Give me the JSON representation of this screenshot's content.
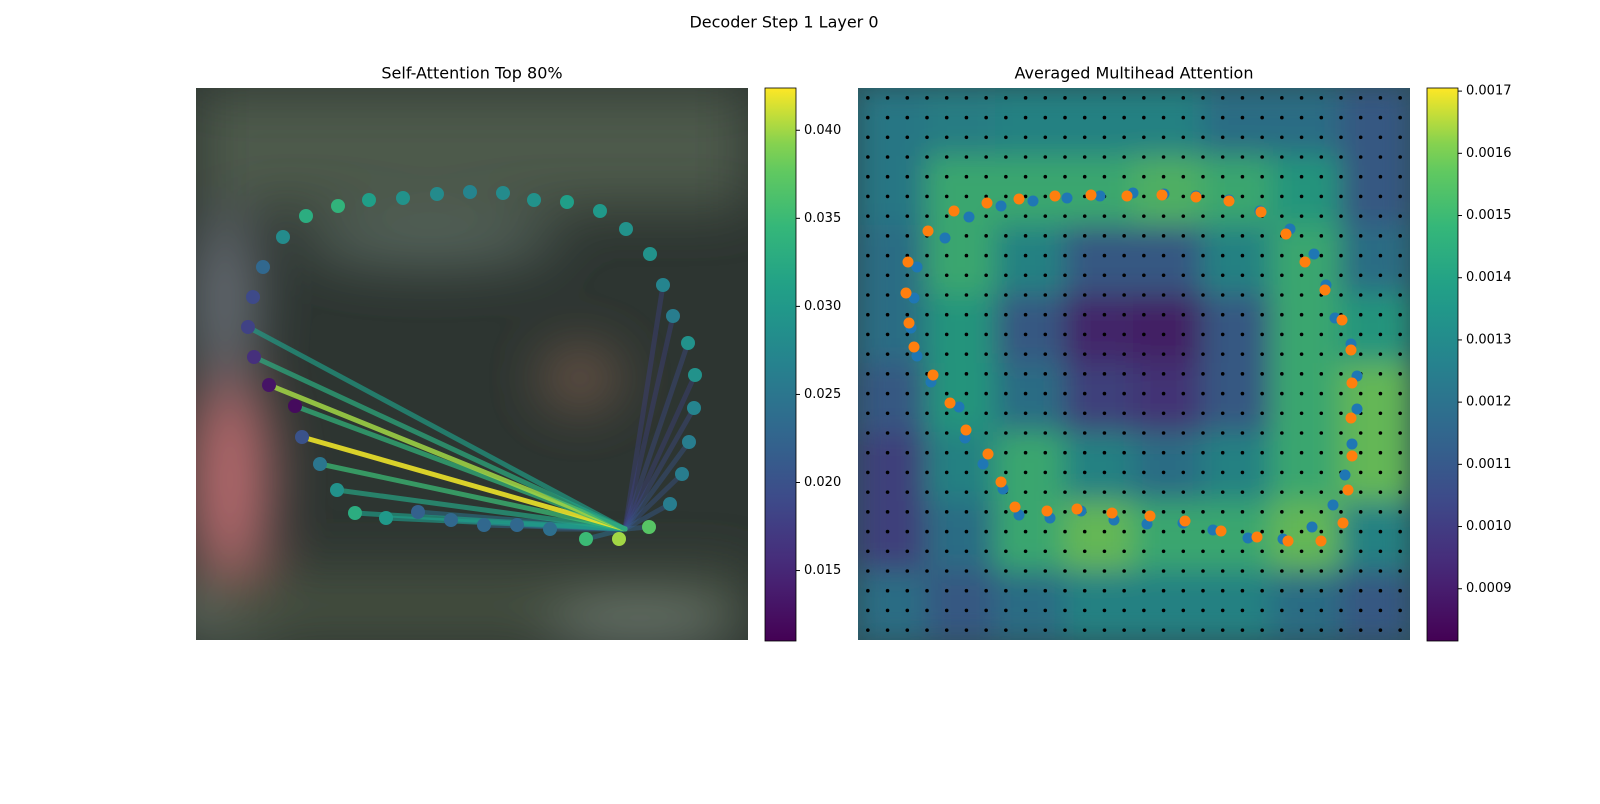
{
  "title": "Decoder Step 1 Layer 0",
  "chart_data": [
    {
      "type": "scatter",
      "title": "Self-Attention Top 80%",
      "cmap": "viridis",
      "xlim": [
        0,
        552
      ],
      "ylim": [
        552,
        0
      ],
      "x": [
        87,
        110,
        142,
        173,
        207,
        241,
        274,
        307,
        338,
        371,
        404,
        430,
        454,
        467,
        477,
        492,
        499,
        498,
        493,
        486,
        474,
        453,
        423,
        390,
        354,
        321,
        288,
        255,
        222,
        190,
        159,
        141,
        124,
        106,
        99,
        73,
        58,
        52,
        57,
        67
      ],
      "y": [
        149,
        128,
        118,
        112,
        110,
        106,
        104,
        105,
        112,
        114,
        123,
        141,
        166,
        197,
        228,
        255,
        287,
        320,
        354,
        386,
        416,
        439,
        451,
        451,
        441,
        437,
        437,
        432,
        424,
        430,
        425,
        402,
        376,
        349,
        318,
        297,
        269,
        239,
        209,
        179
      ],
      "values": [
        0.028,
        0.033,
        0.034,
        0.031,
        0.029,
        0.028,
        0.027,
        0.028,
        0.029,
        0.031,
        0.03,
        0.029,
        0.029,
        0.027,
        0.026,
        0.029,
        0.029,
        0.027,
        0.026,
        0.026,
        0.026,
        0.037,
        0.04,
        0.035,
        0.024,
        0.023,
        0.023,
        0.023,
        0.022,
        0.03,
        0.033,
        0.029,
        0.025,
        0.02,
        0.012,
        0.013,
        0.016,
        0.018,
        0.019,
        0.023
      ],
      "line_weights": [
        null,
        null,
        null,
        null,
        null,
        null,
        null,
        null,
        null,
        null,
        null,
        null,
        null,
        0.018,
        0.018,
        0.019,
        0.018,
        0.019,
        0.02,
        0.02,
        0.021,
        0.022,
        null,
        0.024,
        0.022,
        0.022,
        0.023,
        0.024,
        0.025,
        0.03,
        0.031,
        0.032,
        0.035,
        0.042,
        0.034,
        0.04,
        0.033,
        0.031,
        null,
        null
      ],
      "clim": [
        0.011,
        0.0424
      ],
      "cticks": [
        0.015,
        {
          "value": 0.02,
          "label": "0.020"
        },
        0.025,
        {
          "value": 0.03,
          "label": "0.030"
        },
        0.035,
        {
          "value": 0.04,
          "label": "0.040"
        }
      ]
    },
    {
      "type": "heatmap",
      "title": "Averaged Multihead Attention",
      "cmap": "viridis",
      "xlim": [
        0,
        552
      ],
      "ylim": [
        552,
        0
      ],
      "z": [
        [
          0.00125,
          0.00128,
          0.0013,
          0.0013,
          0.0013,
          0.0012,
          0.0012,
          0.0011
        ],
        [
          0.00125,
          0.0015,
          0.0015,
          0.0015,
          0.00155,
          0.0015,
          0.0014,
          0.0011
        ],
        [
          0.0012,
          0.0015,
          0.0013,
          0.0011,
          0.0011,
          0.0013,
          0.0015,
          0.0012
        ],
        [
          0.0012,
          0.0014,
          0.0011,
          0.0009,
          0.00088,
          0.0011,
          0.0015,
          0.0014
        ],
        [
          0.0011,
          0.0014,
          0.0012,
          0.001,
          0.00095,
          0.0011,
          0.0015,
          0.0016
        ],
        [
          0.001,
          0.0013,
          0.0015,
          0.0013,
          0.0012,
          0.0013,
          0.0015,
          0.0016
        ],
        [
          0.001,
          0.0012,
          0.0015,
          0.0016,
          0.0015,
          0.0015,
          0.0016,
          0.0013
        ],
        [
          0.0012,
          0.0011,
          0.0012,
          0.0013,
          0.0013,
          0.0013,
          0.0012,
          0.0011
        ]
      ],
      "clim": [
        0.000816,
        0.001705
      ],
      "cticks": [
        0.0009,
        {
          "value": 0.001,
          "label": "0.0010"
        },
        0.0011,
        0.0012,
        0.0013,
        0.0014,
        0.0015,
        0.0016,
        0.0017
      ],
      "series": [
        {
          "color": "#1f77b4",
          "x": [
            59,
            56,
            53,
            59,
            73,
            101,
            107,
            125,
            145,
            161,
            192,
            223,
            256,
            289,
            325,
            355,
            390,
            425,
            454,
            475,
            487,
            494,
            499,
            499,
            493,
            477,
            468,
            456,
            432,
            402,
            371,
            338,
            306,
            275,
            242,
            209,
            175,
            143,
            111,
            87
          ],
          "y": [
            179,
            210,
            240,
            268,
            294,
            319,
            350,
            376,
            401,
            427,
            430,
            423,
            432,
            436,
            435,
            442,
            450,
            451,
            439,
            417,
            387,
            356,
            321,
            288,
            256,
            230,
            197,
            166,
            141,
            123,
            112,
            108,
            106,
            105,
            108,
            110,
            113,
            118,
            129,
            150
          ]
        },
        {
          "color": "#ff7f0e",
          "x": [
            50,
            48,
            51,
            56,
            75,
            92,
            108,
            130,
            143,
            157,
            189,
            219,
            254,
            292,
            327,
            363,
            399,
            430,
            463,
            485,
            490,
            494,
            493,
            494,
            493,
            484,
            467,
            447,
            428,
            403,
            371,
            338,
            304,
            269,
            233,
            197,
            161,
            129,
            96,
            70
          ],
          "y": [
            174,
            205,
            235,
            259,
            287,
            315,
            342,
            366,
            394,
            419,
            423,
            421,
            425,
            428,
            433,
            443,
            449,
            453,
            453,
            435,
            402,
            368,
            330,
            295,
            262,
            232,
            202,
            174,
            146,
            124,
            113,
            109,
            107,
            108,
            107,
            108,
            111,
            115,
            123,
            143
          ]
        }
      ]
    }
  ]
}
